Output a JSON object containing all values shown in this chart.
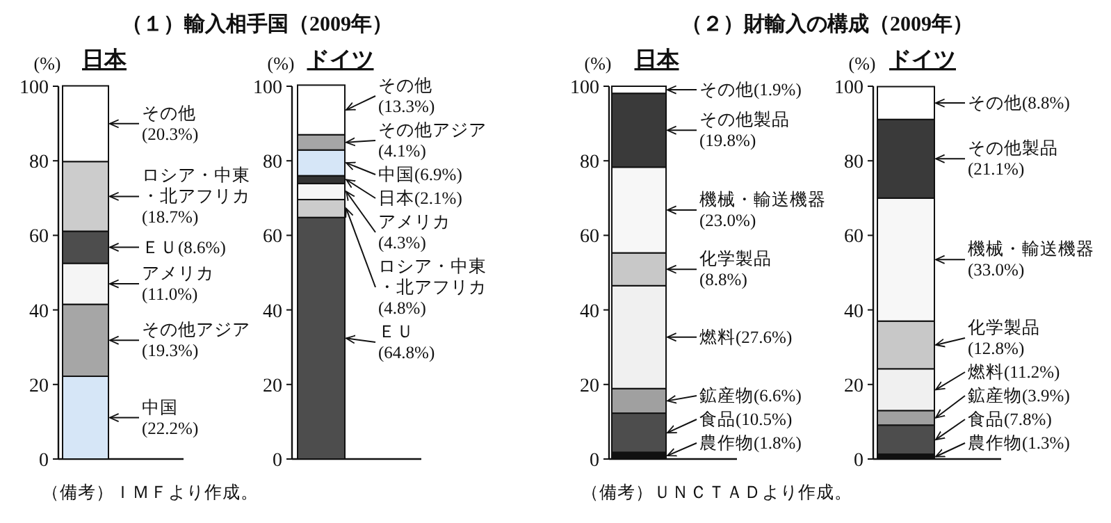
{
  "chart_data": [
    {
      "type": "bar",
      "title": "（１）輸入相手国（2009年）",
      "ylabel": "(%)",
      "categories": [
        "日本"
      ],
      "stacked": true,
      "ylim": [
        0,
        100
      ],
      "yticks": [
        0,
        20,
        40,
        60,
        80,
        100
      ],
      "annotations": [
        "（備考）ＩＭＦより作成。"
      ],
      "series": [
        {
          "name": "中国",
          "color": "#d6e6f7",
          "values": [
            22.2
          ],
          "value_labels": [
            "(22.2%)"
          ]
        },
        {
          "name": "その他アジア",
          "color": "#a6a6a6",
          "values": [
            19.3
          ],
          "value_labels": [
            "(19.3%)"
          ]
        },
        {
          "name": "アメリカ",
          "color": "#f5f5f5",
          "values": [
            11.0
          ],
          "value_labels": [
            "(11.0%)"
          ]
        },
        {
          "name": "ＥＵ",
          "color": "#4d4d4d",
          "values": [
            8.6
          ],
          "value_labels": [
            "(8.6%)"
          ]
        },
        {
          "name": "ロシア・中東・北アフリカ",
          "color": "#cccccc",
          "values": [
            18.7
          ],
          "value_labels": [
            "(18.7%)"
          ]
        },
        {
          "name": "その他",
          "color": "#ffffff",
          "values": [
            20.3
          ],
          "value_labels": [
            "(20.3%)"
          ]
        }
      ]
    },
    {
      "type": "bar",
      "ylabel": "(%)",
      "categories": [
        "ドイツ"
      ],
      "stacked": true,
      "ylim": [
        0,
        100
      ],
      "yticks": [
        0,
        20,
        40,
        60,
        80,
        100
      ],
      "series": [
        {
          "name": "ＥＵ",
          "color": "#4d4d4d",
          "values": [
            64.8
          ],
          "value_labels": [
            "(64.8%)"
          ]
        },
        {
          "name": "ロシア・中東・北アフリカ",
          "color": "#cccccc",
          "values": [
            4.8
          ],
          "value_labels": [
            "(4.8%)"
          ]
        },
        {
          "name": "アメリカ",
          "color": "#f5f5f5",
          "values": [
            4.3
          ],
          "value_labels": [
            "(4.3%)"
          ]
        },
        {
          "name": "日本",
          "color": "#333333",
          "values": [
            2.1
          ],
          "value_labels": [
            "(2.1%)"
          ]
        },
        {
          "name": "中国",
          "color": "#d6e6f7",
          "values": [
            6.9
          ],
          "value_labels": [
            "(6.9%)"
          ]
        },
        {
          "name": "その他アジア",
          "color": "#a6a6a6",
          "values": [
            4.1
          ],
          "value_labels": [
            "(4.1%)"
          ]
        },
        {
          "name": "その他",
          "color": "#ffffff",
          "values": [
            13.3
          ],
          "value_labels": [
            "(13.3%)"
          ]
        }
      ]
    },
    {
      "type": "bar",
      "title": "（２）財輸入の構成（2009年）",
      "ylabel": "(%)",
      "categories": [
        "日本"
      ],
      "stacked": true,
      "ylim": [
        0,
        100
      ],
      "yticks": [
        0,
        20,
        40,
        60,
        80,
        100
      ],
      "annotations": [
        "（備考）ＵＮＣＴＡＤより作成。"
      ],
      "series": [
        {
          "name": "農作物",
          "color": "#111111",
          "values": [
            1.8
          ],
          "value_labels": [
            "(1.8%)"
          ]
        },
        {
          "name": "食品",
          "color": "#4d4d4d",
          "values": [
            10.5
          ],
          "value_labels": [
            "(10.5%)"
          ]
        },
        {
          "name": "鉱産物",
          "color": "#a0a0a0",
          "values": [
            6.6
          ],
          "value_labels": [
            "(6.6%)"
          ]
        },
        {
          "name": "燃料",
          "color": "#f0f0f0",
          "values": [
            27.6
          ],
          "value_labels": [
            "(27.6%)"
          ]
        },
        {
          "name": "化学製品",
          "color": "#c8c8c8",
          "values": [
            8.8
          ],
          "value_labels": [
            "(8.8%)"
          ]
        },
        {
          "name": "機械・輸送機器",
          "color": "#f7f7f7",
          "values": [
            23.0
          ],
          "value_labels": [
            "(23.0%)"
          ]
        },
        {
          "name": "その他製品",
          "color": "#3a3a3a",
          "values": [
            19.8
          ],
          "value_labels": [
            "(19.8%)"
          ]
        },
        {
          "name": "その他",
          "color": "#ffffff",
          "values": [
            1.9
          ],
          "value_labels": [
            "(1.9%)"
          ]
        }
      ]
    },
    {
      "type": "bar",
      "ylabel": "(%)",
      "categories": [
        "ドイツ"
      ],
      "stacked": true,
      "ylim": [
        0,
        100
      ],
      "yticks": [
        0,
        20,
        40,
        60,
        80,
        100
      ],
      "series": [
        {
          "name": "農作物",
          "color": "#111111",
          "values": [
            1.3
          ],
          "value_labels": [
            "(1.3%)"
          ]
        },
        {
          "name": "食品",
          "color": "#4d4d4d",
          "values": [
            7.8
          ],
          "value_labels": [
            "(7.8%)"
          ]
        },
        {
          "name": "鉱産物",
          "color": "#a0a0a0",
          "values": [
            3.9
          ],
          "value_labels": [
            "(3.9%)"
          ]
        },
        {
          "name": "燃料",
          "color": "#f0f0f0",
          "values": [
            11.2
          ],
          "value_labels": [
            "(11.2%)"
          ]
        },
        {
          "name": "化学製品",
          "color": "#c8c8c8",
          "values": [
            12.8
          ],
          "value_labels": [
            "(12.8%)"
          ]
        },
        {
          "name": "機械・輸送機器",
          "color": "#f7f7f7",
          "values": [
            33.0
          ],
          "value_labels": [
            "(33.0%)"
          ]
        },
        {
          "name": "その他製品",
          "color": "#3a3a3a",
          "values": [
            21.1
          ],
          "value_labels": [
            "(21.1%)"
          ]
        },
        {
          "name": "その他",
          "color": "#ffffff",
          "values": [
            8.8
          ],
          "value_labels": [
            "(8.8%)"
          ]
        }
      ]
    }
  ]
}
